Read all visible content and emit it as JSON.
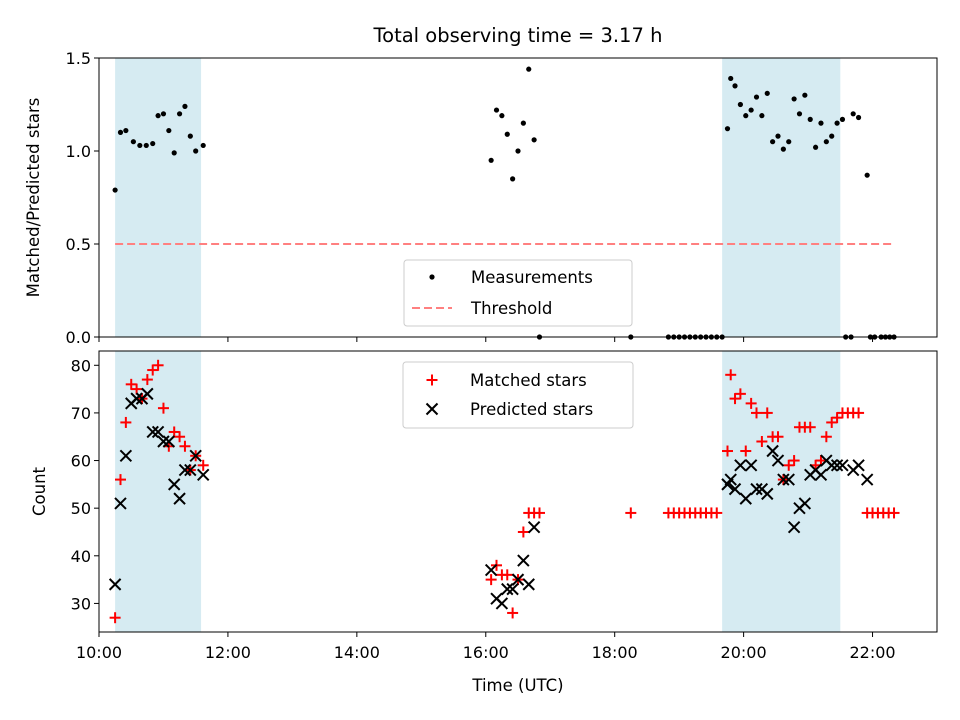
{
  "chart_data": [
    {
      "type": "scatter",
      "title": "Total observing time = 3.17 h",
      "xlabel": "",
      "ylabel": "Matched/Predicted stars",
      "xlim": [
        "10:00",
        "23:00"
      ],
      "ylim": [
        0,
        1.5
      ],
      "yticks": [
        "0.0",
        "0.5",
        "1.0",
        "1.5"
      ],
      "shaded_intervals": [
        [
          "10:15",
          "11:35"
        ],
        [
          "19:40",
          "21:30"
        ]
      ],
      "shade_color": "#add8e6",
      "legend": {
        "placement": "lower-center",
        "entries": [
          "Measurements",
          "Threshold"
        ]
      },
      "threshold": {
        "name": "Threshold",
        "y": 0.5,
        "x_range": [
          "10:15",
          "22:20"
        ],
        "color": "#ff8080",
        "style": "dashed"
      },
      "series": [
        {
          "name": "Measurements",
          "color": "#000000",
          "x": [
            "10:15",
            "10:20",
            "10:25",
            "10:32",
            "10:38",
            "10:44",
            "10:50",
            "10:55",
            "11:00",
            "11:05",
            "11:10",
            "11:15",
            "11:20",
            "11:25",
            "11:30",
            "11:37",
            "16:05",
            "16:10",
            "16:15",
            "16:20",
            "16:25",
            "16:30",
            "16:35",
            "16:40",
            "16:45",
            "19:45",
            "19:48",
            "19:52",
            "19:57",
            "20:02",
            "20:07",
            "20:12",
            "20:17",
            "20:22",
            "20:27",
            "20:32",
            "20:37",
            "20:42",
            "20:47",
            "20:52",
            "20:57",
            "21:02",
            "21:07",
            "21:12",
            "21:17",
            "21:22",
            "21:27",
            "21:32",
            "21:42",
            "21:47",
            "21:55",
            "16:50",
            "18:15",
            "18:50",
            "18:55",
            "19:00",
            "19:05",
            "19:10",
            "19:15",
            "19:20",
            "19:25",
            "19:30",
            "19:35",
            "19:40",
            "21:35",
            "21:40",
            "21:58",
            "22:02",
            "22:08",
            "22:12",
            "22:16",
            "22:20"
          ],
          "y": [
            0.79,
            1.1,
            1.11,
            1.05,
            1.03,
            1.03,
            1.04,
            1.19,
            1.2,
            1.11,
            0.99,
            1.2,
            1.24,
            1.08,
            1.0,
            1.03,
            0.95,
            1.22,
            1.19,
            1.09,
            0.85,
            1.0,
            1.15,
            1.44,
            1.06,
            1.12,
            1.39,
            1.35,
            1.25,
            1.19,
            1.22,
            1.29,
            1.19,
            1.31,
            1.05,
            1.08,
            1.01,
            1.05,
            1.28,
            1.2,
            1.3,
            1.17,
            1.02,
            1.15,
            1.05,
            1.08,
            1.15,
            1.17,
            1.2,
            1.18,
            0.87,
            0,
            0,
            0,
            0,
            0,
            0,
            0,
            0,
            0,
            0,
            0,
            0,
            0,
            0,
            0,
            0,
            0,
            0,
            0,
            0,
            0
          ]
        }
      ]
    },
    {
      "type": "scatter",
      "title": "",
      "xlabel": "Time (UTC)",
      "ylabel": "Count",
      "xlim": [
        "10:00",
        "23:00"
      ],
      "ylim": [
        24,
        83
      ],
      "xticks": [
        "10:00",
        "12:00",
        "14:00",
        "16:00",
        "18:00",
        "20:00",
        "22:00"
      ],
      "yticks": [
        "30",
        "40",
        "50",
        "60",
        "70",
        "80"
      ],
      "shaded_intervals": [
        [
          "10:15",
          "11:35"
        ],
        [
          "19:40",
          "21:30"
        ]
      ],
      "shade_color": "#add8e6",
      "legend": {
        "placement": "top-center",
        "entries": [
          "Matched stars",
          "Predicted stars"
        ]
      },
      "series": [
        {
          "name": "Matched stars",
          "marker": "plus",
          "color": "#ff0000",
          "x": [
            "10:15",
            "10:20",
            "10:25",
            "10:30",
            "10:35",
            "10:40",
            "10:45",
            "10:50",
            "10:55",
            "11:00",
            "11:05",
            "11:10",
            "11:15",
            "11:20",
            "11:25",
            "11:30",
            "11:37",
            "16:05",
            "16:10",
            "16:15",
            "16:20",
            "16:25",
            "16:30",
            "16:35",
            "16:40",
            "16:45",
            "16:50",
            "18:15",
            "18:50",
            "18:55",
            "19:00",
            "19:05",
            "19:10",
            "19:15",
            "19:20",
            "19:25",
            "19:30",
            "19:35",
            "19:45",
            "19:48",
            "19:52",
            "19:57",
            "20:02",
            "20:07",
            "20:12",
            "20:17",
            "20:22",
            "20:27",
            "20:32",
            "20:37",
            "20:42",
            "20:47",
            "20:52",
            "20:57",
            "21:02",
            "21:07",
            "21:12",
            "21:17",
            "21:22",
            "21:27",
            "21:32",
            "21:37",
            "21:42",
            "21:47",
            "21:55",
            "22:00",
            "22:05",
            "22:10",
            "22:15",
            "22:20"
          ],
          "y": [
            27,
            56,
            68,
            76,
            75,
            73,
            77,
            79,
            80,
            71,
            63,
            66,
            65,
            63,
            58,
            61,
            59,
            35,
            38,
            36,
            36,
            28,
            35,
            45,
            49,
            49,
            49,
            49,
            49,
            49,
            49,
            49,
            49,
            49,
            49,
            49,
            49,
            49,
            62,
            78,
            73,
            74,
            62,
            72,
            70,
            64,
            70,
            65,
            65,
            56,
            59,
            60,
            67,
            67,
            67,
            59,
            60,
            65,
            68,
            69,
            70,
            70,
            70,
            70,
            49,
            49,
            49,
            49,
            49,
            49
          ]
        },
        {
          "name": "Predicted stars",
          "marker": "x",
          "color": "#000000",
          "x": [
            "10:15",
            "10:20",
            "10:25",
            "10:30",
            "10:35",
            "10:40",
            "10:45",
            "10:50",
            "10:55",
            "11:00",
            "11:05",
            "11:10",
            "11:15",
            "11:20",
            "11:25",
            "11:30",
            "11:37",
            "16:05",
            "16:10",
            "16:15",
            "16:20",
            "16:25",
            "16:30",
            "16:35",
            "16:40",
            "16:45",
            "19:45",
            "19:48",
            "19:52",
            "19:57",
            "20:02",
            "20:07",
            "20:12",
            "20:17",
            "20:22",
            "20:27",
            "20:32",
            "20:37",
            "20:42",
            "20:47",
            "20:52",
            "20:57",
            "21:02",
            "21:07",
            "21:12",
            "21:17",
            "21:22",
            "21:27",
            "21:32",
            "21:42",
            "21:47",
            "21:55"
          ],
          "y": [
            34,
            51,
            61,
            72,
            73,
            73,
            74,
            66,
            66,
            64,
            64,
            55,
            52,
            58,
            58,
            61,
            57,
            37,
            31,
            30,
            33,
            33,
            35,
            39,
            34,
            46,
            55,
            56,
            54,
            59,
            52,
            59,
            54,
            54,
            53,
            62,
            60,
            56,
            56,
            46,
            50,
            51,
            57,
            58,
            57,
            60,
            59,
            59,
            59,
            58,
            59,
            56
          ]
        }
      ]
    }
  ]
}
